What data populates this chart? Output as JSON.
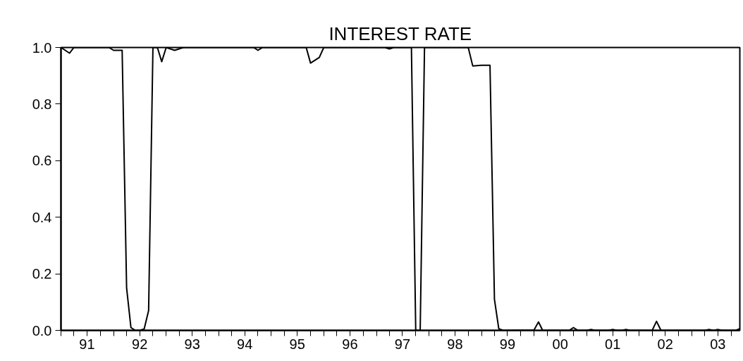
{
  "chart_data": {
    "type": "line",
    "title": "INTEREST RATE",
    "series": [
      {
        "color": "#000000",
        "x": [
          "1991-01",
          "1991-03",
          "1991-04",
          "1991-12",
          "1992-01",
          "1992-03",
          "1992-04",
          "1992-05",
          "1992-06",
          "1992-07",
          "1992-08",
          "1992-09",
          "1992-10",
          "1992-11",
          "1992-12",
          "1993-01",
          "1993-03",
          "1993-05",
          "1994-09",
          "1994-10",
          "1994-11",
          "1995-09",
          "1995-10",
          "1995-12",
          "1996-01",
          "1997-03",
          "1997-04",
          "1997-05",
          "1997-09",
          "1997-10",
          "1997-11",
          "1997-12",
          "1998-10",
          "1998-11",
          "1999-01",
          "1999-03",
          "1999-04",
          "1999-05",
          "1999-06",
          "2000-01",
          "2000-02",
          "2000-03",
          "2000-09",
          "2000-10",
          "2000-11",
          "2001-01",
          "2001-02",
          "2001-03",
          "2001-06",
          "2001-07",
          "2001-08",
          "2001-09",
          "2001-10",
          "2001-11",
          "2002-04",
          "2002-05",
          "2002-06",
          "2003-04",
          "2003-05",
          "2003-06",
          "2003-07",
          "2003-08",
          "2003-11",
          "2003-12"
        ],
        "values": [
          1.0,
          0.98,
          1.0,
          1.0,
          0.99,
          0.99,
          0.15,
          0.01,
          0.0,
          0.0,
          0.005,
          0.07,
          1.0,
          1.0,
          0.95,
          1.0,
          0.99,
          1.0,
          1.0,
          0.99,
          1.0,
          1.0,
          0.945,
          0.965,
          1.0,
          1.0,
          0.995,
          1.0,
          1.0,
          0.0,
          0.0,
          1.0,
          1.0,
          0.935,
          0.937,
          0.937,
          0.11,
          0.006,
          0.0,
          0.001,
          0.03,
          0.0,
          0.0,
          0.01,
          0.0,
          0.0,
          0.003,
          0.0,
          0.0,
          0.003,
          0.0,
          0.0,
          0.003,
          0.0,
          0.0,
          0.032,
          0.0,
          0.0,
          0.003,
          0.0,
          0.003,
          0.0,
          0.0,
          0.006
        ]
      }
    ],
    "xlim": [
      "1991-01",
      "2003-12"
    ],
    "xticks": [
      {
        "value": "1991-01",
        "label": null
      },
      {
        "value": "1991-04",
        "label": null
      },
      {
        "value": "1991-07",
        "label": "91"
      },
      {
        "value": "1991-10",
        "label": null
      },
      {
        "value": "1992-01",
        "label": null
      },
      {
        "value": "1992-04",
        "label": null
      },
      {
        "value": "1992-07",
        "label": "92"
      },
      {
        "value": "1992-10",
        "label": null
      },
      {
        "value": "1993-01",
        "label": null
      },
      {
        "value": "1993-04",
        "label": null
      },
      {
        "value": "1993-07",
        "label": "93"
      },
      {
        "value": "1993-10",
        "label": null
      },
      {
        "value": "1994-01",
        "label": null
      },
      {
        "value": "1994-04",
        "label": null
      },
      {
        "value": "1994-07",
        "label": "94"
      },
      {
        "value": "1994-10",
        "label": null
      },
      {
        "value": "1995-01",
        "label": null
      },
      {
        "value": "1995-04",
        "label": null
      },
      {
        "value": "1995-07",
        "label": "95"
      },
      {
        "value": "1995-10",
        "label": null
      },
      {
        "value": "1996-01",
        "label": null
      },
      {
        "value": "1996-04",
        "label": null
      },
      {
        "value": "1996-07",
        "label": "96"
      },
      {
        "value": "1996-10",
        "label": null
      },
      {
        "value": "1997-01",
        "label": null
      },
      {
        "value": "1997-04",
        "label": null
      },
      {
        "value": "1997-07",
        "label": "97"
      },
      {
        "value": "1997-10",
        "label": null
      },
      {
        "value": "1998-01",
        "label": null
      },
      {
        "value": "1998-04",
        "label": null
      },
      {
        "value": "1998-07",
        "label": "98"
      },
      {
        "value": "1998-10",
        "label": null
      },
      {
        "value": "1999-01",
        "label": null
      },
      {
        "value": "1999-04",
        "label": null
      },
      {
        "value": "1999-07",
        "label": "99"
      },
      {
        "value": "1999-10",
        "label": null
      },
      {
        "value": "2000-01",
        "label": null
      },
      {
        "value": "2000-04",
        "label": null
      },
      {
        "value": "2000-07",
        "label": "00"
      },
      {
        "value": "2000-10",
        "label": null
      },
      {
        "value": "2001-01",
        "label": null
      },
      {
        "value": "2001-04",
        "label": null
      },
      {
        "value": "2001-07",
        "label": "01"
      },
      {
        "value": "2001-10",
        "label": null
      },
      {
        "value": "2002-01",
        "label": null
      },
      {
        "value": "2002-04",
        "label": null
      },
      {
        "value": "2002-07",
        "label": "02"
      },
      {
        "value": "2002-10",
        "label": null
      },
      {
        "value": "2003-01",
        "label": null
      },
      {
        "value": "2003-04",
        "label": null
      },
      {
        "value": "2003-07",
        "label": "03"
      },
      {
        "value": "2003-10",
        "label": null
      }
    ],
    "ylim": [
      0,
      1
    ],
    "yticks": [
      {
        "value": 0,
        "label": "0.0"
      },
      {
        "value": 0.2,
        "label": "0.2"
      },
      {
        "value": 0.4,
        "label": "0.4"
      },
      {
        "value": 0.6,
        "label": "0.6"
      },
      {
        "value": 0.8,
        "label": "0.8"
      },
      {
        "value": 1,
        "label": "1.0"
      }
    ],
    "grid": false
  }
}
